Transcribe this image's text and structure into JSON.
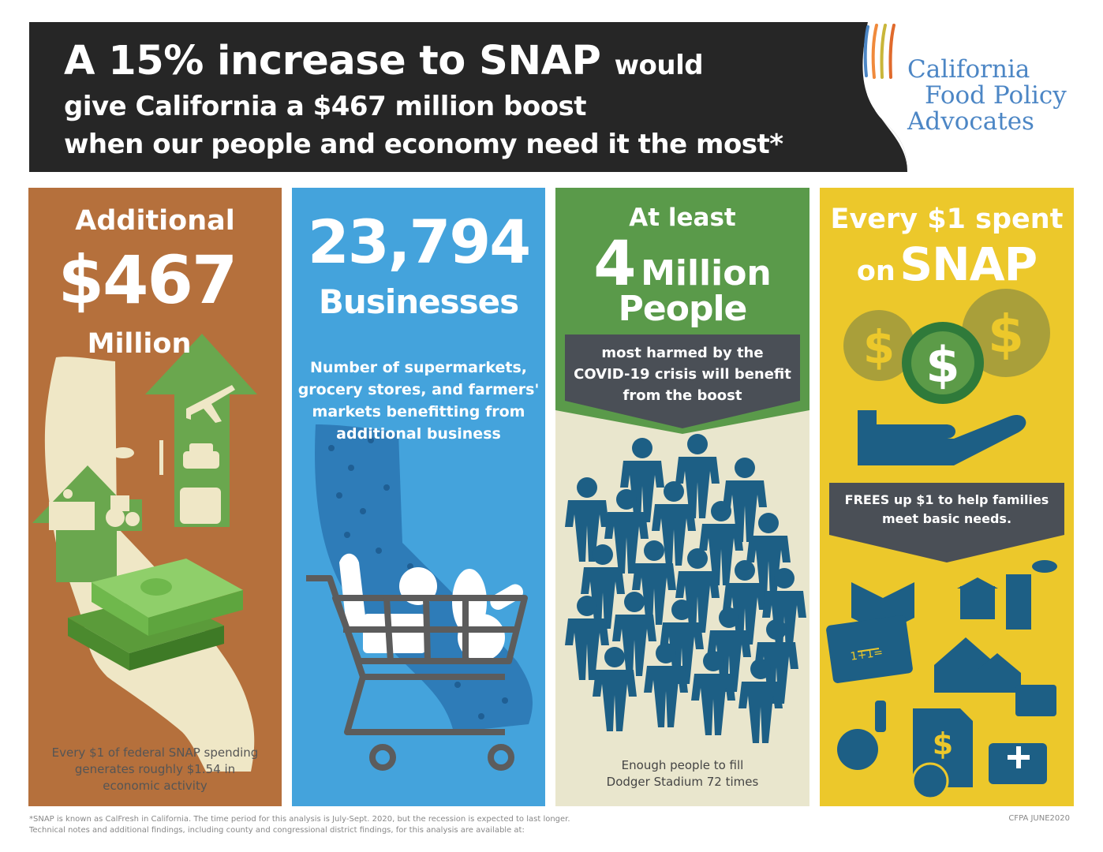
{
  "header": {
    "line1_big": "A 15% increase to SNAP",
    "line1_small": "would",
    "line2": "give California a $467 million boost",
    "line3": "when our people and economy need it the most*"
  },
  "logo": {
    "line1": "California",
    "line2": "Food Policy",
    "line3": "Advocates"
  },
  "panel1": {
    "label_top": "Additional",
    "value": "$467",
    "label_bottom": "Million",
    "footer": [
      "Every $1 of federal SNAP spending",
      "generates roughly $1.54 in",
      "economic activity"
    ]
  },
  "panel2": {
    "value": "23,794",
    "label": "Businesses",
    "description": [
      "Number of supermarkets,",
      "grocery stores, and farmers'",
      "markets benefitting from",
      "additional business"
    ]
  },
  "panel3": {
    "label_top": "At least",
    "value": "4",
    "value_unit": "Million",
    "label": "People",
    "banner": [
      "most harmed by the",
      "COVID-19 crisis will benefit",
      "from the boost"
    ],
    "footer": [
      "Enough people to fill",
      "Dodger Stadium 72 times"
    ]
  },
  "panel4": {
    "label_top": "Every $1 spent",
    "label_on": "on",
    "label_snap": "SNAP",
    "banner": [
      "FREES up $1 to help families",
      "meet basic needs."
    ],
    "chalk": "1+1="
  },
  "footnote": [
    "*SNAP is known as CalFresh in California. The time period for this analysis is July-Sept. 2020, but the recession is expected to last longer.",
    "Technical notes and additional findings, including county and congressional district findings, for this analysis are available at:"
  ],
  "credit": "CFPA  JUNE2020",
  "colors": {
    "header_bg": "#262626",
    "panel1": "#b5703c",
    "panel2": "#44a3dc",
    "panel3": "#e9e6cd",
    "panel4": "#ecc82b",
    "icon_blue": "#1d5f85",
    "green": "#5c9b48",
    "logo_blue": "#4c86c5"
  }
}
